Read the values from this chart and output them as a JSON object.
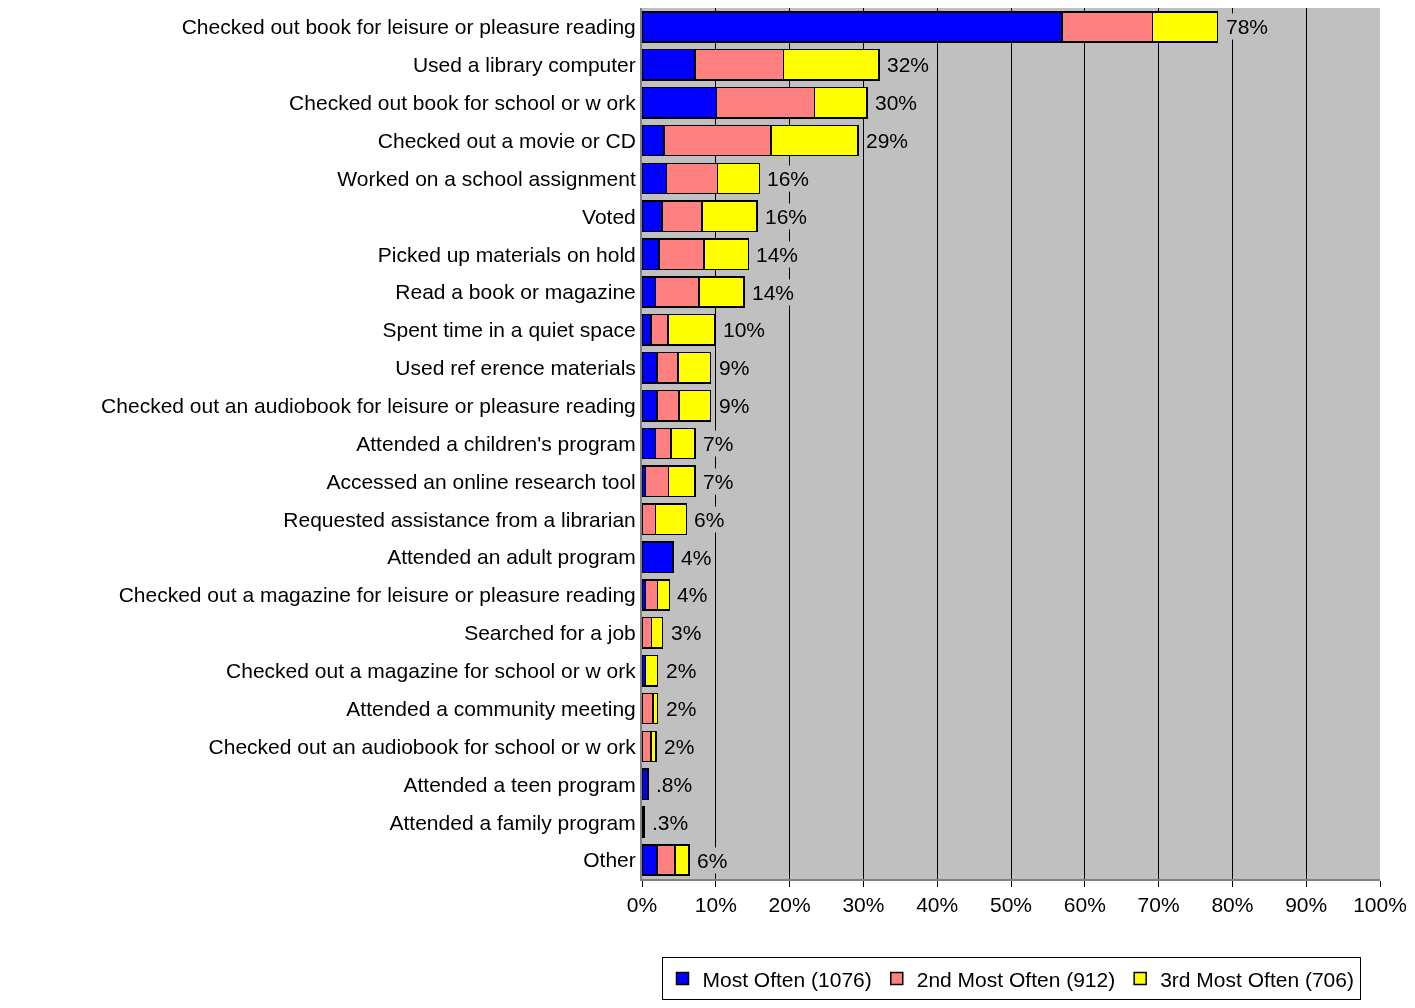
{
  "chart_data": {
    "type": "bar",
    "orientation": "horizontal",
    "stacked": true,
    "categories": [
      "Checked out book for leisure or pleasure reading",
      "Used a library computer",
      "Checked out book for school or w ork",
      "Checked out a movie or CD",
      "Worked on a school assignment",
      "Voted",
      "Picked up materials on hold",
      "Read a book or magazine",
      "Spent time in a quiet space",
      "Used ref erence materials",
      "Checked out an audiobook for leisure or pleasure reading",
      "Attended a children's program",
      "Accessed an online research tool",
      "Requested assistance from a librarian",
      "Attended an adult program",
      "Checked out a magazine for leisure or pleasure reading",
      "Searched for a job",
      "Checked out a magazine for school or w ork",
      "Attended a community meeting",
      "Checked out an audiobook for school or w ork",
      "Attended a teen program",
      "Attended a family program",
      "Other"
    ],
    "series": [
      {
        "name": "Most Often (1076)",
        "color": "#0000ff",
        "values": [
          56.9,
          7.2,
          10.1,
          3.0,
          3.3,
          2.7,
          2.3,
          1.8,
          1.2,
          2.0,
          2.0,
          1.8,
          0.5,
          null,
          4.2,
          0.5,
          null,
          0.5,
          0.1,
          0.1,
          0.8,
          0.3,
          2.0
        ]
      },
      {
        "name": "2nd Most Often (912)",
        "color": "#ff8080",
        "values": [
          12.3,
          12.0,
          13.3,
          14.5,
          6.9,
          5.4,
          6.1,
          5.9,
          2.3,
          2.9,
          3.0,
          2.1,
          3.1,
          1.8,
          0,
          1.6,
          1.3,
          0,
          1.4,
          1.1,
          0,
          0,
          2.5
        ]
      },
      {
        "name": "3rd Most Often (706)",
        "color": "#ffff00",
        "values": [
          8.8,
          12.9,
          7.1,
          11.8,
          5.7,
          7.5,
          6.0,
          6.1,
          6.4,
          4.4,
          4.3,
          3.3,
          3.6,
          4.2,
          0,
          1.6,
          1.5,
          1.6,
          0.6,
          0.7,
          0,
          0,
          1.9
        ]
      }
    ],
    "totals": [
      "78%",
      "32%",
      "30%",
      "29%",
      "16%",
      "16%",
      "14%",
      "14%",
      "10%",
      "9%",
      "9%",
      "7%",
      "7%",
      "6%",
      "4%",
      "4%",
      "3%",
      "2%",
      "2%",
      "2%",
      ".8%",
      ".3%",
      "6%"
    ],
    "xlim": [
      0,
      100
    ],
    "xticks": [
      {
        "value": 0,
        "label": "0%"
      },
      {
        "value": 10,
        "label": "10%"
      },
      {
        "value": 20,
        "label": "20%"
      },
      {
        "value": 30,
        "label": "30%"
      },
      {
        "value": 40,
        "label": "40%"
      },
      {
        "value": 50,
        "label": "50%"
      },
      {
        "value": 60,
        "label": "60%"
      },
      {
        "value": 70,
        "label": "70%"
      },
      {
        "value": 80,
        "label": "80%"
      },
      {
        "value": 90,
        "label": "90%"
      },
      {
        "value": 100,
        "label": "100%"
      }
    ],
    "grid": "x",
    "legend": "bottom"
  }
}
